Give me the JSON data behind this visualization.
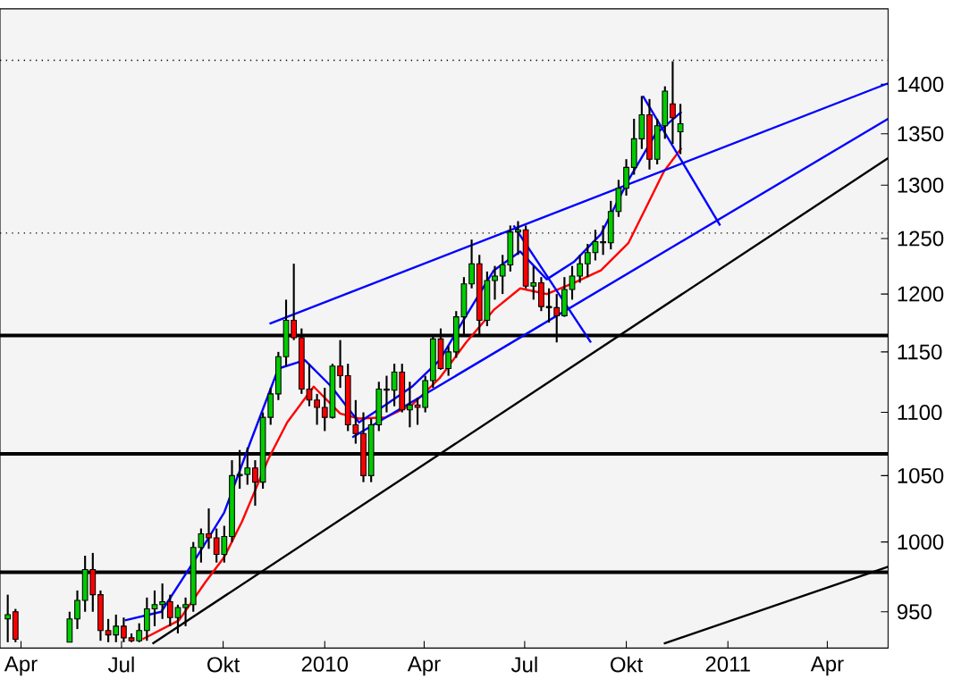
{
  "chart_data": {
    "type": "candlestick",
    "log": "y",
    "x": [
      "2009-03-20",
      "2009-03-27",
      "2009-05-15",
      "2009-05-22",
      "2009-05-29",
      "2009-06-05",
      "2009-06-12",
      "2009-06-19",
      "2009-06-26",
      "2009-07-03",
      "2009-07-10",
      "2009-07-17",
      "2009-07-24",
      "2009-07-31",
      "2009-08-07",
      "2009-08-14",
      "2009-08-21",
      "2009-08-28",
      "2009-09-04",
      "2009-09-11",
      "2009-09-18",
      "2009-09-25",
      "2009-10-02",
      "2009-10-09",
      "2009-10-16",
      "2009-10-23",
      "2009-10-30",
      "2009-11-06",
      "2009-11-13",
      "2009-11-20",
      "2009-11-27",
      "2009-12-04",
      "2009-12-11",
      "2009-12-18",
      "2009-12-25",
      "2010-01-01",
      "2010-01-08",
      "2010-01-15",
      "2010-01-22",
      "2010-01-29",
      "2010-02-05",
      "2010-02-12",
      "2010-02-19",
      "2010-02-26",
      "2010-03-05",
      "2010-03-12",
      "2010-03-19",
      "2010-03-26",
      "2010-04-02",
      "2010-04-09",
      "2010-04-16",
      "2010-04-23",
      "2010-04-30",
      "2010-05-07",
      "2010-05-14",
      "2010-05-21",
      "2010-05-28",
      "2010-06-04",
      "2010-06-11",
      "2010-06-18",
      "2010-06-25",
      "2010-07-02",
      "2010-07-09",
      "2010-07-16",
      "2010-07-23",
      "2010-07-30",
      "2010-08-06",
      "2010-08-13",
      "2010-08-20",
      "2010-08-27",
      "2010-09-03",
      "2010-09-10",
      "2010-09-17",
      "2010-09-24",
      "2010-10-01",
      "2010-10-08",
      "2010-10-15",
      "2010-10-22",
      "2010-10-29",
      "2010-11-05",
      "2010-11-12",
      "2010-11-19"
    ],
    "ohlc": [
      [
        945,
        962,
        929,
        948
      ],
      [
        950,
        952,
        929,
        931
      ],
      [
        929,
        950,
        929,
        945
      ],
      [
        945,
        965,
        938,
        958
      ],
      [
        958,
        990,
        950,
        980
      ],
      [
        980,
        992,
        950,
        962
      ],
      [
        962,
        965,
        930,
        937
      ],
      [
        937,
        945,
        929,
        934
      ],
      [
        934,
        948,
        929,
        940
      ],
      [
        940,
        946,
        929,
        932
      ],
      [
        932,
        935,
        929,
        930
      ],
      [
        930,
        942,
        929,
        937
      ],
      [
        937,
        960,
        930,
        952
      ],
      [
        952,
        965,
        940,
        955
      ],
      [
        955,
        970,
        945,
        957
      ],
      [
        957,
        962,
        940,
        946
      ],
      [
        946,
        955,
        935,
        953
      ],
      [
        953,
        960,
        940,
        955
      ],
      [
        955,
        1000,
        950,
        996
      ],
      [
        996,
        1010,
        985,
        1006
      ],
      [
        1006,
        1025,
        995,
        1003
      ],
      [
        1003,
        1010,
        985,
        991
      ],
      [
        991,
        1012,
        985,
        1004
      ],
      [
        1004,
        1062,
        1000,
        1050
      ],
      [
        1050,
        1070,
        1040,
        1051
      ],
      [
        1051,
        1072,
        1043,
        1056
      ],
      [
        1056,
        1062,
        1027,
        1045
      ],
      [
        1045,
        1100,
        1040,
        1096
      ],
      [
        1096,
        1120,
        1090,
        1115
      ],
      [
        1115,
        1150,
        1110,
        1146
      ],
      [
        1146,
        1195,
        1138,
        1177
      ],
      [
        1177,
        1227,
        1160,
        1162
      ],
      [
        1162,
        1170,
        1115,
        1119
      ],
      [
        1119,
        1140,
        1105,
        1110
      ],
      [
        1110,
        1115,
        1090,
        1104
      ],
      [
        1104,
        1120,
        1085,
        1096
      ],
      [
        1096,
        1140,
        1095,
        1138
      ],
      [
        1138,
        1160,
        1120,
        1130
      ],
      [
        1130,
        1140,
        1085,
        1090
      ],
      [
        1090,
        1110,
        1075,
        1083
      ],
      [
        1083,
        1100,
        1045,
        1050
      ],
      [
        1050,
        1095,
        1045,
        1090
      ],
      [
        1090,
        1125,
        1085,
        1119
      ],
      [
        1119,
        1130,
        1100,
        1118
      ],
      [
        1118,
        1140,
        1105,
        1133
      ],
      [
        1133,
        1140,
        1100,
        1102
      ],
      [
        1102,
        1125,
        1088,
        1106
      ],
      [
        1106,
        1112,
        1090,
        1104
      ],
      [
        1104,
        1130,
        1100,
        1126
      ],
      [
        1126,
        1165,
        1120,
        1161
      ],
      [
        1161,
        1170,
        1135,
        1136
      ],
      [
        1136,
        1155,
        1130,
        1150
      ],
      [
        1150,
        1185,
        1145,
        1180
      ],
      [
        1180,
        1215,
        1165,
        1209
      ],
      [
        1209,
        1249,
        1205,
        1227
      ],
      [
        1227,
        1235,
        1165,
        1177
      ],
      [
        1177,
        1220,
        1172,
        1212
      ],
      [
        1212,
        1225,
        1195,
        1216
      ],
      [
        1216,
        1235,
        1200,
        1226
      ],
      [
        1226,
        1262,
        1220,
        1256
      ],
      [
        1256,
        1266,
        1235,
        1258
      ],
      [
        1258,
        1262,
        1205,
        1207
      ],
      [
        1207,
        1225,
        1195,
        1210
      ],
      [
        1210,
        1215,
        1185,
        1189
      ],
      [
        1189,
        1205,
        1175,
        1188
      ],
      [
        1188,
        1200,
        1158,
        1181
      ],
      [
        1181,
        1215,
        1180,
        1204
      ],
      [
        1204,
        1225,
        1195,
        1216
      ],
      [
        1216,
        1235,
        1210,
        1227
      ],
      [
        1227,
        1245,
        1215,
        1237
      ],
      [
        1237,
        1258,
        1230,
        1247
      ],
      [
        1247,
        1262,
        1235,
        1246
      ],
      [
        1246,
        1285,
        1240,
        1275
      ],
      [
        1275,
        1305,
        1270,
        1297
      ],
      [
        1297,
        1325,
        1290,
        1317
      ],
      [
        1317,
        1365,
        1310,
        1345
      ],
      [
        1345,
        1388,
        1335,
        1369
      ],
      [
        1369,
        1385,
        1315,
        1325
      ],
      [
        1325,
        1365,
        1320,
        1358
      ],
      [
        1358,
        1398,
        1345,
        1393
      ],
      [
        1380,
        1424,
        1340,
        1366
      ],
      [
        1352,
        1380,
        1330,
        1360
      ]
    ],
    "series": [
      {
        "type": "line",
        "color": "#ff0000",
        "x": [
          "2009-07-20",
          "2009-08-22",
          "2009-09-15",
          "2009-10-02",
          "2009-10-18",
          "2009-11-11",
          "2009-11-28",
          "2009-12-22",
          "2010-01-15",
          "2010-02-01",
          "2010-02-25",
          "2010-03-21",
          "2010-04-15",
          "2010-05-09",
          "2010-06-03",
          "2010-06-27",
          "2010-07-21",
          "2010-08-15",
          "2010-09-08",
          "2010-10-03",
          "2010-10-19",
          "2010-11-04",
          "2010-11-20"
        ],
        "values": [
          931,
          944,
          971,
          989,
          1015,
          1063,
          1092,
          1121,
          1099,
          1095,
          1096,
          1106,
          1128,
          1158,
          1186,
          1205,
          1200,
          1210,
          1221,
          1246,
          1279,
          1313,
          1336
        ]
      },
      {
        "type": "line",
        "color": "#0000ff",
        "x": [
          "2009-07-04",
          "2009-08-06",
          "2009-09-07",
          "2009-10-02",
          "2009-10-26",
          "2009-11-20",
          "2009-12-14",
          "2010-01-07",
          "2010-02-01",
          "2010-02-25",
          "2010-03-21",
          "2010-04-15",
          "2010-05-09",
          "2010-06-03",
          "2010-06-27",
          "2010-07-21",
          "2010-08-15",
          "2010-09-08",
          "2010-10-03",
          "2010-10-27",
          "2010-11-20"
        ],
        "values": [
          944,
          950,
          989,
          1022,
          1077,
          1136,
          1143,
          1121,
          1092,
          1106,
          1121,
          1143,
          1181,
          1221,
          1238,
          1213,
          1229,
          1254,
          1305,
          1349,
          1372
        ]
      },
      {
        "type": "line",
        "color": "#000000",
        "x": [
          "2009-07-29",
          "2011-05-26"
        ],
        "values": [
          928,
          1326
        ]
      },
      {
        "type": "line",
        "color": "#000000",
        "x": [
          "2010-11-04",
          "2011-05-26"
        ],
        "values": [
          928,
          982
        ]
      },
      {
        "type": "line",
        "color": "#0000ff",
        "x": [
          "2009-11-12",
          "2011-05-26"
        ],
        "values": [
          1174,
          1401
        ]
      },
      {
        "type": "line",
        "color": "#0000ff",
        "x": [
          "2010-01-26",
          "2011-05-26"
        ],
        "values": [
          1080,
          1365
        ]
      },
      {
        "type": "line",
        "color": "#0000ff",
        "x": [
          "2010-06-21",
          "2010-08-30"
        ],
        "values": [
          1262,
          1158
        ]
      },
      {
        "type": "line",
        "color": "#0000ff",
        "x": [
          "2010-10-16",
          "2010-12-25"
        ],
        "values": [
          1388,
          1262
        ]
      }
    ],
    "ref_lines": [
      {
        "axis": "y",
        "value": 1425,
        "color": "#000000",
        "line_style": "dotted"
      },
      {
        "axis": "y",
        "value": 1255,
        "color": "#000000",
        "line_style": "dotted"
      },
      {
        "axis": "y",
        "value": 1164,
        "color": "#000000",
        "line_style": "solid"
      },
      {
        "axis": "y",
        "value": 1067,
        "color": "#000000",
        "line_style": "solid"
      },
      {
        "axis": "y",
        "value": 978,
        "color": "#000000",
        "line_style": "solid"
      }
    ],
    "xlim": [
      "2009-03-13",
      "2011-05-26"
    ],
    "xticks": [
      {
        "value": "2009-04-01",
        "label": "Apr"
      },
      {
        "value": "2009-07-01",
        "label": "Jul"
      },
      {
        "value": "2009-10-01",
        "label": "Okt"
      },
      {
        "value": "2010-01-01",
        "label": "2010"
      },
      {
        "value": "2010-04-01",
        "label": "Apr"
      },
      {
        "value": "2010-07-01",
        "label": "Jul"
      },
      {
        "value": "2010-10-01",
        "label": "Okt"
      },
      {
        "value": "2011-01-01",
        "label": "2011"
      },
      {
        "value": "2011-04-01",
        "label": "Apr"
      }
    ],
    "ylim": [
      925,
      1480
    ],
    "yticks": [
      950,
      1000,
      1050,
      1100,
      1150,
      1200,
      1250,
      1300,
      1350,
      1400
    ]
  }
}
